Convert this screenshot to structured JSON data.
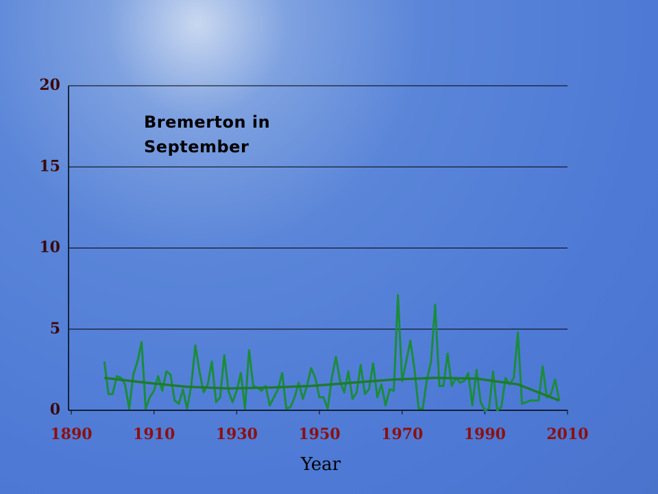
{
  "chart_data": {
    "type": "line",
    "title": "Bremerton in September",
    "x_label": "Year",
    "x": [
      1898,
      1899,
      1900,
      1901,
      1902,
      1903,
      1904,
      1905,
      1906,
      1907,
      1908,
      1909,
      1910,
      1911,
      1912,
      1913,
      1914,
      1915,
      1916,
      1917,
      1918,
      1919,
      1920,
      1921,
      1922,
      1923,
      1924,
      1925,
      1926,
      1927,
      1928,
      1929,
      1930,
      1931,
      1932,
      1933,
      1934,
      1935,
      1936,
      1937,
      1938,
      1939,
      1940,
      1941,
      1942,
      1943,
      1944,
      1945,
      1946,
      1947,
      1948,
      1949,
      1950,
      1951,
      1952,
      1953,
      1954,
      1955,
      1956,
      1957,
      1958,
      1959,
      1960,
      1961,
      1962,
      1963,
      1964,
      1965,
      1966,
      1967,
      1968,
      1969,
      1970,
      1971,
      1972,
      1973,
      1974,
      1975,
      1976,
      1977,
      1978,
      1979,
      1980,
      1981,
      1982,
      1983,
      1984,
      1985,
      1986,
      1987,
      1988,
      1989,
      1990,
      1991,
      1992,
      1993,
      1994,
      1995,
      1996,
      1997,
      1998,
      1999,
      2000,
      2001,
      2002,
      2003,
      2004,
      2005,
      2006,
      2007,
      2008
    ],
    "series": [
      {
        "color": "#1a8c3a",
        "values": [
          3.0,
          1.0,
          1.0,
          2.1,
          2.0,
          1.6,
          0.1,
          2.2,
          3.0,
          4.2,
          0.1,
          0.8,
          1.2,
          2.1,
          1.2,
          2.4,
          2.2,
          0.6,
          0.4,
          1.3,
          0.1,
          1.5,
          4.0,
          2.4,
          1.1,
          1.6,
          3.0,
          0.5,
          0.8,
          3.4,
          1.2,
          0.5,
          1.2,
          2.3,
          0.1,
          3.7,
          1.5,
          1.4,
          1.2,
          1.5,
          0.3,
          0.8,
          1.3,
          2.3,
          0.1,
          0.2,
          0.8,
          1.7,
          0.7,
          1.5,
          2.6,
          2.0,
          0.8,
          0.8,
          0.1,
          2.0,
          3.3,
          1.8,
          1.1,
          2.4,
          0.7,
          1.1,
          2.8,
          1.0,
          1.3,
          2.9,
          0.8,
          1.6,
          0.3,
          1.3,
          1.2,
          7.1,
          1.8,
          3.0,
          4.3,
          2.5,
          0.1,
          0.1,
          1.9,
          3.0,
          6.5,
          1.5,
          1.5,
          3.5,
          1.5,
          2.0,
          1.7,
          1.8,
          2.3,
          0.3,
          2.5,
          0.5,
          0.0,
          0.1,
          2.4,
          0.0,
          0.2,
          2.0,
          1.6,
          2.0,
          4.8,
          0.4,
          0.5,
          0.6,
          0.6,
          0.6,
          2.7,
          0.8,
          1.0,
          1.9,
          0.6
        ]
      },
      {
        "color": "#1e7a30",
        "x": [
          1898,
          1908,
          1918,
          1928,
          1938,
          1948,
          1958,
          1968,
          1978,
          1988,
          1998,
          2008
        ],
        "values": [
          2.0,
          1.7,
          1.45,
          1.35,
          1.4,
          1.5,
          1.7,
          1.9,
          2.0,
          1.95,
          1.6,
          0.6
        ]
      }
    ],
    "xlim": [
      1890,
      2010
    ],
    "xticks": [
      1890,
      1910,
      1930,
      1950,
      1970,
      1990,
      2010
    ],
    "ylim": [
      0,
      20
    ],
    "yticks": [
      0,
      5,
      10,
      15,
      20
    ],
    "grid": true
  }
}
